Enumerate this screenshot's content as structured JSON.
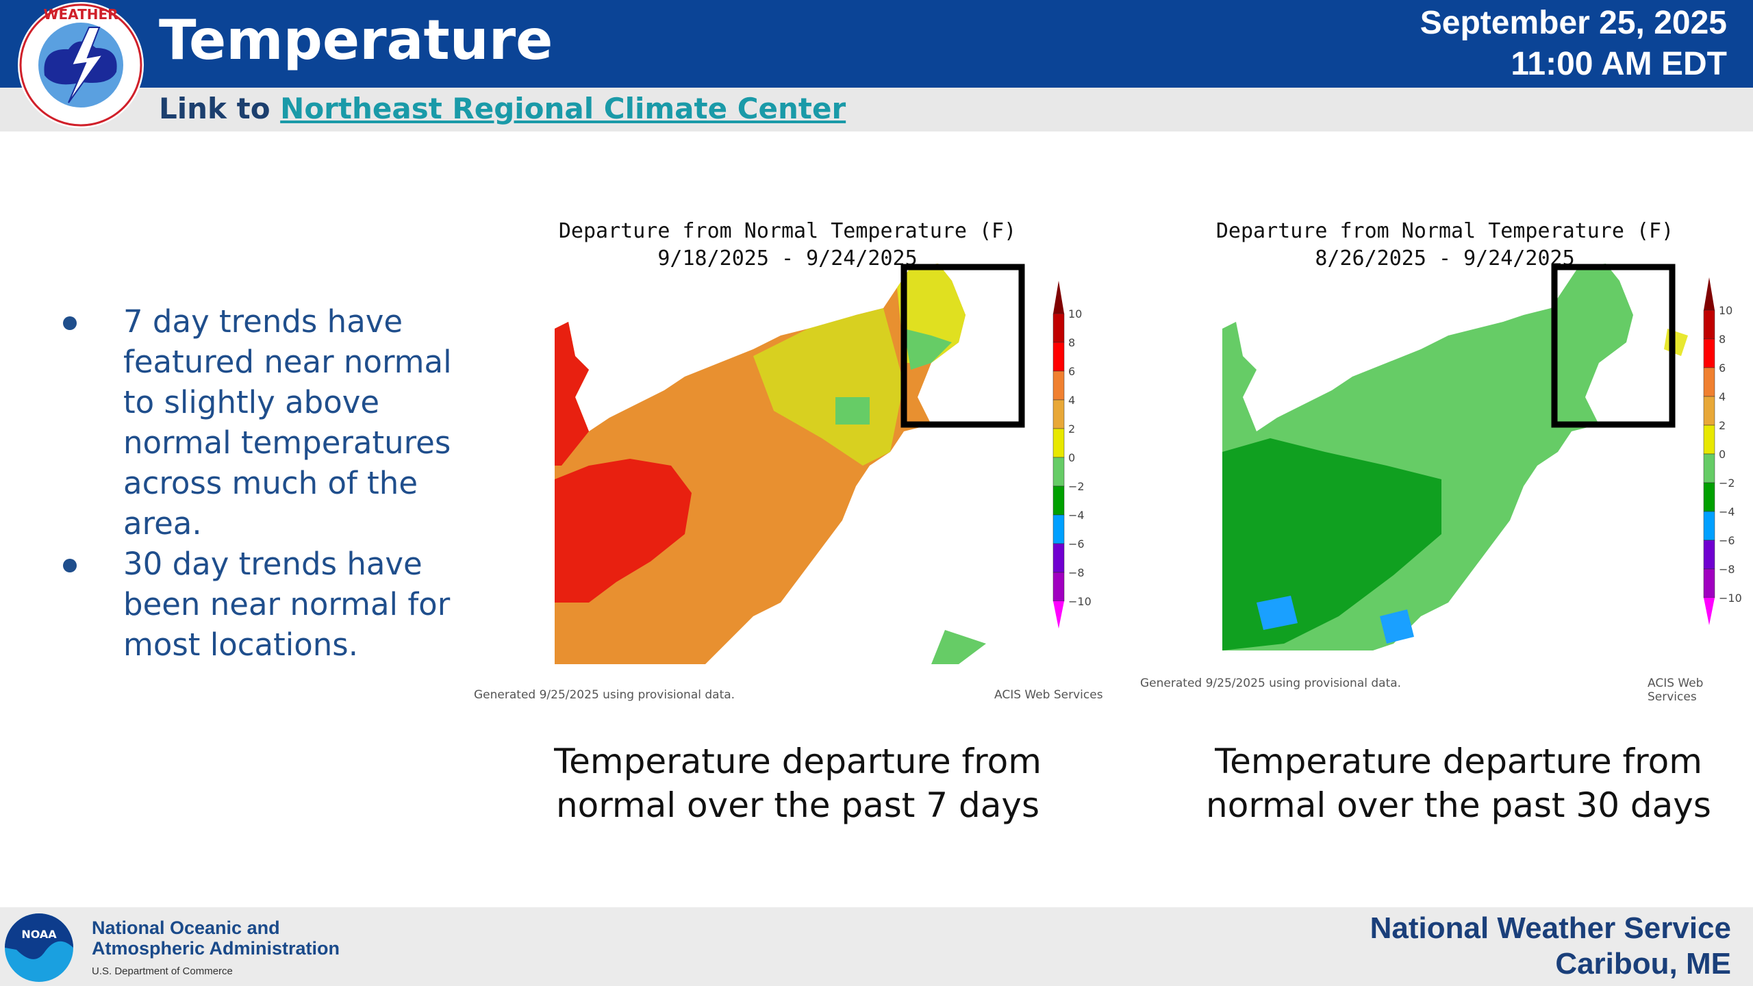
{
  "header": {
    "title": "Temperature",
    "date": "September 25, 2025",
    "time": "11:00 AM EDT",
    "logo_text": "NATIONAL WEATHER SERVICE"
  },
  "link": {
    "prefix": "Link to",
    "label": "Northeast Regional Climate Center"
  },
  "bullets": [
    "7 day trends have featured near normal to slightly above normal temperatures across much of the area.",
    "30 day trends have been near normal for most locations."
  ],
  "maps": [
    {
      "title": "Departure from Normal Temperature (F)",
      "period": "9/18/2025 - 9/24/2025",
      "generated": "Generated 9/25/2025 using provisional data.",
      "source": "ACIS Web Services",
      "caption": "Temperature departure from normal over the past 7 days"
    },
    {
      "title": "Departure from Normal Temperature (F)",
      "period": "8/26/2025 - 9/24/2025",
      "generated": "Generated 9/25/2025 using provisional data.",
      "source": "ACIS Web Services",
      "caption": "Temperature departure from normal over the past 30 days"
    }
  ],
  "legend": {
    "ticks": [
      "10",
      "8",
      "6",
      "4",
      "2",
      "0",
      "−2",
      "−4",
      "−6",
      "−8",
      "−10"
    ],
    "colors": [
      "#c00000",
      "#ff0000",
      "#f08030",
      "#e8a838",
      "#e8e800",
      "#66cc66",
      "#00a000",
      "#00a0ff",
      "#7000d0",
      "#a000c0"
    ],
    "top_color": "#800000",
    "bottom_color": "#ff00ff"
  },
  "footer": {
    "noaa_line1": "National Oceanic and",
    "noaa_line2": "Atmospheric Administration",
    "noaa_sub": "U.S. Department of Commerce",
    "noaa_logo_text": "NOAA",
    "nws_line1": "National Weather Service",
    "nws_line2": "Caribou, ME"
  }
}
